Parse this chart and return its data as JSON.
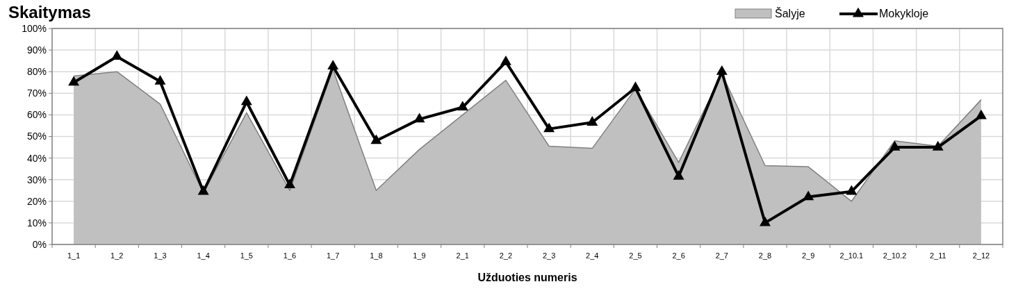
{
  "chart_data": {
    "type": "line",
    "title": "Skaitymas",
    "xlabel": "Užduoties numeris",
    "categories": [
      "1_1",
      "1_2",
      "1_3",
      "1_4",
      "1_5",
      "1_6",
      "1_7",
      "1_8",
      "1_9",
      "2_1",
      "2_2",
      "2_3",
      "2_4",
      "2_5",
      "2_6",
      "2_7",
      "2_8",
      "2_9",
      "2_10.1",
      "2_10.2",
      "2_11",
      "2_12"
    ],
    "series": [
      {
        "name": "Šalyje",
        "type": "area",
        "color": "#c0c0c0",
        "values": [
          78,
          80,
          65,
          24,
          61,
          25,
          81,
          25,
          44,
          60,
          76,
          45.5,
          44.5,
          72,
          38,
          79,
          36.5,
          36,
          20,
          48,
          45.5,
          67
        ]
      },
      {
        "name": "Mokykloje",
        "color": "#000000",
        "marker": "triangle",
        "values": [
          75,
          87,
          75.5,
          24.5,
          66,
          27.5,
          82.5,
          48,
          58,
          63.5,
          84.5,
          53.5,
          56.5,
          72.5,
          31.5,
          80,
          10,
          22,
          24.5,
          45,
          45,
          59.5
        ]
      }
    ],
    "ylim": [
      0,
      100
    ],
    "yticks": [
      {
        "value": 0,
        "label": "0%"
      },
      {
        "value": 10,
        "label": "10%"
      },
      {
        "value": 20,
        "label": "20%"
      },
      {
        "value": 30,
        "label": "30%"
      },
      {
        "value": 40,
        "label": "40%"
      },
      {
        "value": 50,
        "label": "50%"
      },
      {
        "value": 60,
        "label": "60%"
      },
      {
        "value": 70,
        "label": "70%"
      },
      {
        "value": 80,
        "label": "80%"
      },
      {
        "value": 90,
        "label": "90%"
      },
      {
        "value": 100,
        "label": "100%"
      }
    ],
    "grid": true,
    "legend": "top right"
  }
}
